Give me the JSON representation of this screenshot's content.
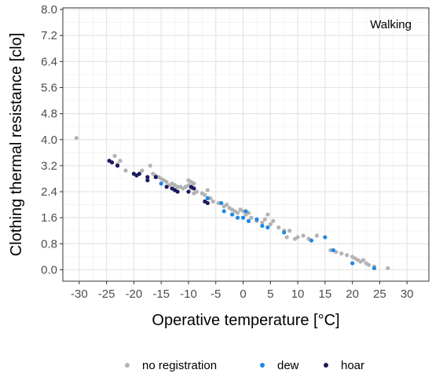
{
  "chart_data": {
    "type": "scatter",
    "title": "",
    "xlabel": "Operative temperature [°C]",
    "ylabel": "Clothing thermal resistance [clo]",
    "annotation": "Walking",
    "xlim": [
      -33,
      34
    ],
    "ylim": [
      -0.35,
      8.05
    ],
    "x_ticks": [
      -30,
      -25,
      -20,
      -15,
      -10,
      -5,
      0,
      5,
      10,
      15,
      20,
      25,
      30
    ],
    "y_ticks": [
      0.0,
      0.8,
      1.6,
      2.4,
      3.2,
      4.0,
      4.8,
      5.6,
      6.4,
      7.2,
      8.0
    ],
    "x_tick_labels": [
      "-30",
      "-25",
      "-20",
      "-15",
      "-10",
      "-5",
      "0",
      "5",
      "10",
      "15",
      "20",
      "25",
      "30"
    ],
    "y_tick_labels": [
      "0.0",
      "0.8",
      "1.6",
      "2.4",
      "3.2",
      "4.0",
      "4.8",
      "5.6",
      "6.4",
      "7.2",
      "8.0"
    ],
    "grid": true,
    "legend_position": "bottom",
    "series": [
      {
        "name": "no registration",
        "color": "#b3b3b3",
        "points": [
          [
            -30.5,
            4.05
          ],
          [
            -23.5,
            3.5
          ],
          [
            -22.5,
            3.35
          ],
          [
            -21.5,
            3.05
          ],
          [
            -23,
            3.25
          ],
          [
            -18.5,
            3.05
          ],
          [
            -17,
            3.2
          ],
          [
            -16.5,
            2.95
          ],
          [
            -16,
            2.9
          ],
          [
            -15.5,
            2.85
          ],
          [
            -15,
            2.8
          ],
          [
            -14.5,
            2.75
          ],
          [
            -14,
            2.7
          ],
          [
            -13.5,
            2.6
          ],
          [
            -13,
            2.65
          ],
          [
            -12.5,
            2.6
          ],
          [
            -12,
            2.55
          ],
          [
            -11.5,
            2.55
          ],
          [
            -11,
            2.5
          ],
          [
            -10.5,
            2.55
          ],
          [
            -10,
            2.6
          ],
          [
            -9.5,
            2.5
          ],
          [
            -9.5,
            2.7
          ],
          [
            -10,
            2.75
          ],
          [
            -9,
            2.65
          ],
          [
            -8.5,
            2.4
          ],
          [
            -9,
            2.35
          ],
          [
            -7.5,
            2.35
          ],
          [
            -7,
            2.3
          ],
          [
            -6.5,
            2.45
          ],
          [
            -6,
            2.2
          ],
          [
            -5.5,
            2.1
          ],
          [
            -4.5,
            2.05
          ],
          [
            -3.5,
            1.95
          ],
          [
            -3,
            2.0
          ],
          [
            -2.5,
            1.9
          ],
          [
            -2,
            1.85
          ],
          [
            -1.5,
            1.8
          ],
          [
            -1,
            1.75
          ],
          [
            -0.5,
            1.85
          ],
          [
            0,
            1.8
          ],
          [
            0.5,
            1.7
          ],
          [
            1,
            1.75
          ],
          [
            1.5,
            1.6
          ],
          [
            2.5,
            1.5
          ],
          [
            3.5,
            1.45
          ],
          [
            4,
            1.55
          ],
          [
            4.5,
            1.7
          ],
          [
            5,
            1.4
          ],
          [
            5.5,
            1.5
          ],
          [
            6.5,
            1.3
          ],
          [
            7.5,
            1.2
          ],
          [
            8.5,
            1.2
          ],
          [
            8,
            1.0
          ],
          [
            9.5,
            0.95
          ],
          [
            10,
            1.0
          ],
          [
            11,
            1.05
          ],
          [
            12,
            0.95
          ],
          [
            13.5,
            1.05
          ],
          [
            16,
            0.6
          ],
          [
            17,
            0.55
          ],
          [
            18,
            0.5
          ],
          [
            19,
            0.45
          ],
          [
            20,
            0.4
          ],
          [
            20.5,
            0.35
          ],
          [
            21,
            0.3
          ],
          [
            21.5,
            0.25
          ],
          [
            22,
            0.3
          ],
          [
            22.5,
            0.2
          ],
          [
            23,
            0.15
          ],
          [
            24,
            0.1
          ],
          [
            26.5,
            0.05
          ]
        ]
      },
      {
        "name": "dew",
        "color": "#1e88e5",
        "points": [
          [
            -15,
            2.65
          ],
          [
            -6.5,
            2.2
          ],
          [
            -4,
            2.05
          ],
          [
            -3.5,
            1.8
          ],
          [
            -2,
            1.7
          ],
          [
            -1,
            1.6
          ],
          [
            0,
            1.6
          ],
          [
            0.5,
            1.8
          ],
          [
            1,
            1.5
          ],
          [
            2.5,
            1.55
          ],
          [
            3.5,
            1.35
          ],
          [
            4.5,
            1.3
          ],
          [
            7.5,
            1.15
          ],
          [
            12.5,
            0.9
          ],
          [
            15,
            1.0
          ],
          [
            16.5,
            0.6
          ],
          [
            20,
            0.2
          ],
          [
            24,
            0.05
          ]
        ]
      },
      {
        "name": "hoar",
        "color": "#1a1a5e",
        "points": [
          [
            -24.5,
            3.35
          ],
          [
            -24,
            3.3
          ],
          [
            -23,
            3.2
          ],
          [
            -20,
            2.95
          ],
          [
            -19.5,
            2.9
          ],
          [
            -19,
            2.95
          ],
          [
            -17.5,
            2.85
          ],
          [
            -17.5,
            2.75
          ],
          [
            -16,
            2.85
          ],
          [
            -14,
            2.55
          ],
          [
            -13,
            2.5
          ],
          [
            -12.5,
            2.45
          ],
          [
            -12,
            2.4
          ],
          [
            -10,
            2.4
          ],
          [
            -9.5,
            2.55
          ],
          [
            -9,
            2.5
          ],
          [
            -7,
            2.1
          ],
          [
            -6.5,
            2.05
          ]
        ]
      }
    ]
  }
}
